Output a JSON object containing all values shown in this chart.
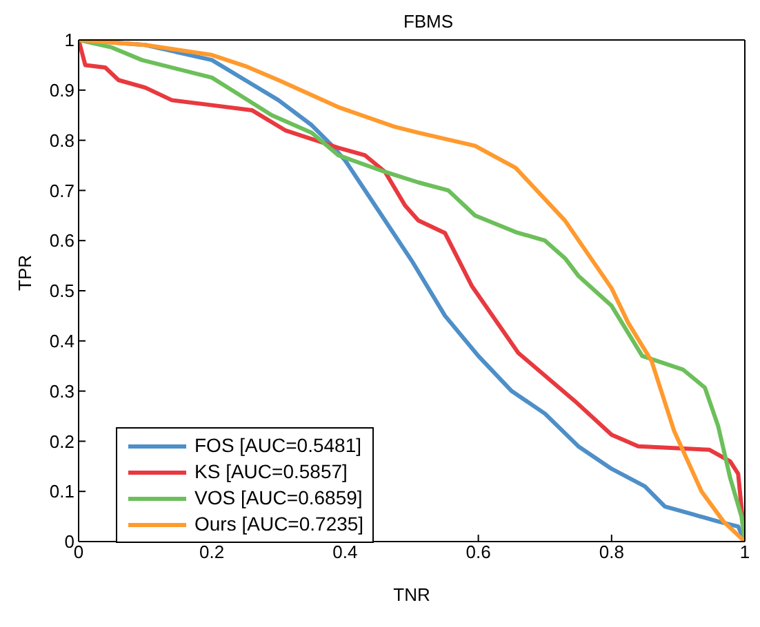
{
  "chart_data": {
    "type": "line",
    "title": "FBMS",
    "xlabel": "TNR",
    "ylabel": "TPR",
    "xlim": [
      0,
      1
    ],
    "ylim": [
      0,
      1
    ],
    "xticks": [
      0,
      0.2,
      0.4,
      0.6,
      0.8,
      1
    ],
    "yticks": [
      0,
      0.1,
      0.2,
      0.3,
      0.4,
      0.5,
      0.6,
      0.7,
      0.8,
      0.9,
      1
    ],
    "grid": false,
    "legend": "bottom left",
    "marker": "none",
    "line_style": "solid",
    "series": [
      {
        "name": "FOS [AUC=0.5481]",
        "color": "#4e8fc8",
        "x": [
          0,
          0.1,
          0.2,
          0.25,
          0.3,
          0.35,
          0.38,
          0.4,
          0.45,
          0.5,
          0.55,
          0.6,
          0.65,
          0.7,
          0.75,
          0.8,
          0.85,
          0.88,
          0.92,
          0.96,
          0.99,
          1
        ],
        "values": [
          1,
          0.99,
          0.96,
          0.92,
          0.88,
          0.83,
          0.79,
          0.76,
          0.66,
          0.56,
          0.45,
          0.37,
          0.3,
          0.255,
          0.19,
          0.145,
          0.11,
          0.07,
          0.055,
          0.04,
          0.03,
          0
        ]
      },
      {
        "name": "KS [AUC=0.5857]",
        "color": "#e8393f",
        "x": [
          0,
          0.01,
          0.04,
          0.06,
          0.1,
          0.14,
          0.2,
          0.26,
          0.31,
          0.39,
          0.43,
          0.46,
          0.49,
          0.51,
          0.55,
          0.59,
          0.66,
          0.745,
          0.8,
          0.84,
          0.947,
          0.978,
          0.99,
          1
        ],
        "values": [
          1,
          0.95,
          0.945,
          0.92,
          0.905,
          0.88,
          0.87,
          0.86,
          0.82,
          0.785,
          0.77,
          0.737,
          0.67,
          0.64,
          0.615,
          0.51,
          0.376,
          0.28,
          0.213,
          0.19,
          0.183,
          0.16,
          0.135,
          0
        ]
      },
      {
        "name": "VOS [AUC=0.6859]",
        "color": "#6cbf5a",
        "x": [
          0,
          0.05,
          0.095,
          0.2,
          0.23,
          0.29,
          0.35,
          0.39,
          0.46,
          0.51,
          0.555,
          0.595,
          0.656,
          0.7,
          0.73,
          0.75,
          0.8,
          0.846,
          0.907,
          0.94,
          0.96,
          0.978,
          0.995,
          1
        ],
        "values": [
          1,
          0.985,
          0.96,
          0.925,
          0.9,
          0.85,
          0.815,
          0.77,
          0.737,
          0.716,
          0.7,
          0.65,
          0.617,
          0.6,
          0.565,
          0.53,
          0.47,
          0.37,
          0.343,
          0.307,
          0.23,
          0.127,
          0.05,
          0
        ]
      },
      {
        "name": "Ours [AUC=0.7235]",
        "color": "#ff9a2e",
        "x": [
          0,
          0.1,
          0.2,
          0.25,
          0.3,
          0.39,
          0.474,
          0.51,
          0.595,
          0.656,
          0.73,
          0.8,
          0.825,
          0.86,
          0.894,
          0.935,
          0.968,
          1
        ],
        "values": [
          1,
          0.99,
          0.97,
          0.948,
          0.92,
          0.866,
          0.827,
          0.815,
          0.789,
          0.745,
          0.64,
          0.505,
          0.436,
          0.36,
          0.22,
          0.1,
          0.04,
          0
        ]
      }
    ]
  }
}
